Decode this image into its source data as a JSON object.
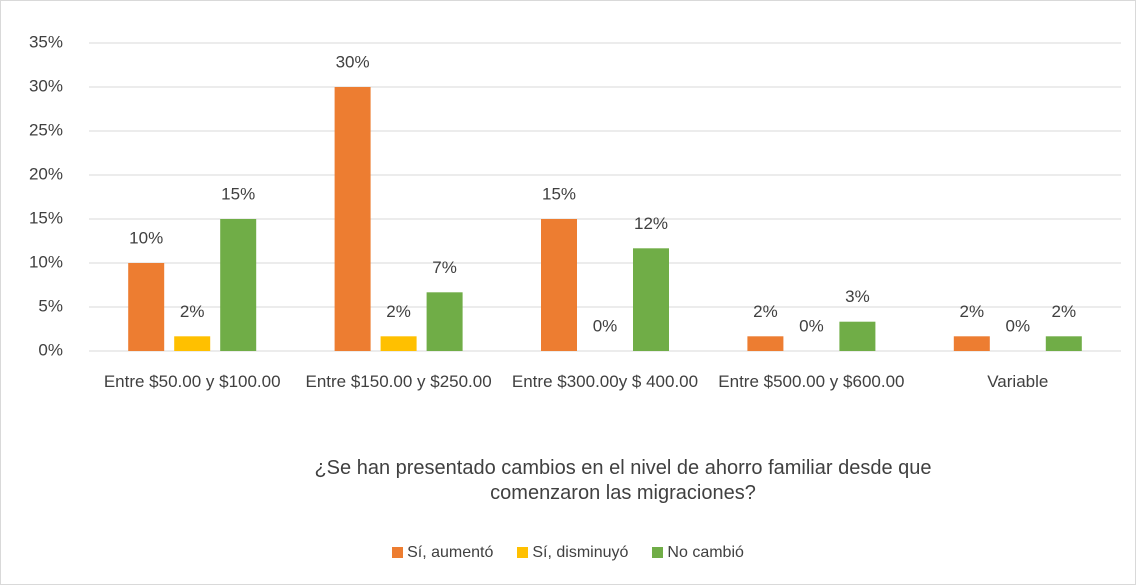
{
  "chart_data": {
    "type": "bar",
    "x_label": "¿Se han presentado cambios en el nivel de ahorro familiar desde que comenzaron las migraciones?",
    "categories": [
      "Entre $50.00 y $100.00",
      "Entre $150.00 y $250.00",
      "Entre $300.00y $ 400.00",
      "Entre $500.00 y $600.00",
      "Variable"
    ],
    "series": [
      {
        "name": "Sí, aumentó",
        "color": "#ed7d31",
        "values": [
          10,
          30,
          15,
          1.67,
          1.67
        ],
        "value_labels": [
          "10%",
          "30%",
          "15%",
          "2%",
          "2%"
        ]
      },
      {
        "name": "Sí, disminuyó",
        "color": "#ffc000",
        "values": [
          1.67,
          1.67,
          0,
          0,
          0
        ],
        "value_labels": [
          "2%",
          "2%",
          "0%",
          "0%",
          "0%"
        ]
      },
      {
        "name": "No cambió",
        "color": "#70ad47",
        "values": [
          15,
          6.67,
          11.67,
          3.33,
          1.67
        ],
        "value_labels": [
          "15%",
          "7%",
          "12%",
          "3%",
          "2%"
        ]
      }
    ],
    "ylim": [
      0,
      35
    ],
    "yticks": [
      {
        "value": 0,
        "label": "0%"
      },
      {
        "value": 5,
        "label": "5%"
      },
      {
        "value": 10,
        "label": "10%"
      },
      {
        "value": 15,
        "label": "15%"
      },
      {
        "value": 20,
        "label": "20%"
      },
      {
        "value": 25,
        "label": "25%"
      },
      {
        "value": 30,
        "label": "30%"
      },
      {
        "value": 35,
        "label": "35%"
      }
    ],
    "grid": true,
    "legend": "bottom"
  }
}
